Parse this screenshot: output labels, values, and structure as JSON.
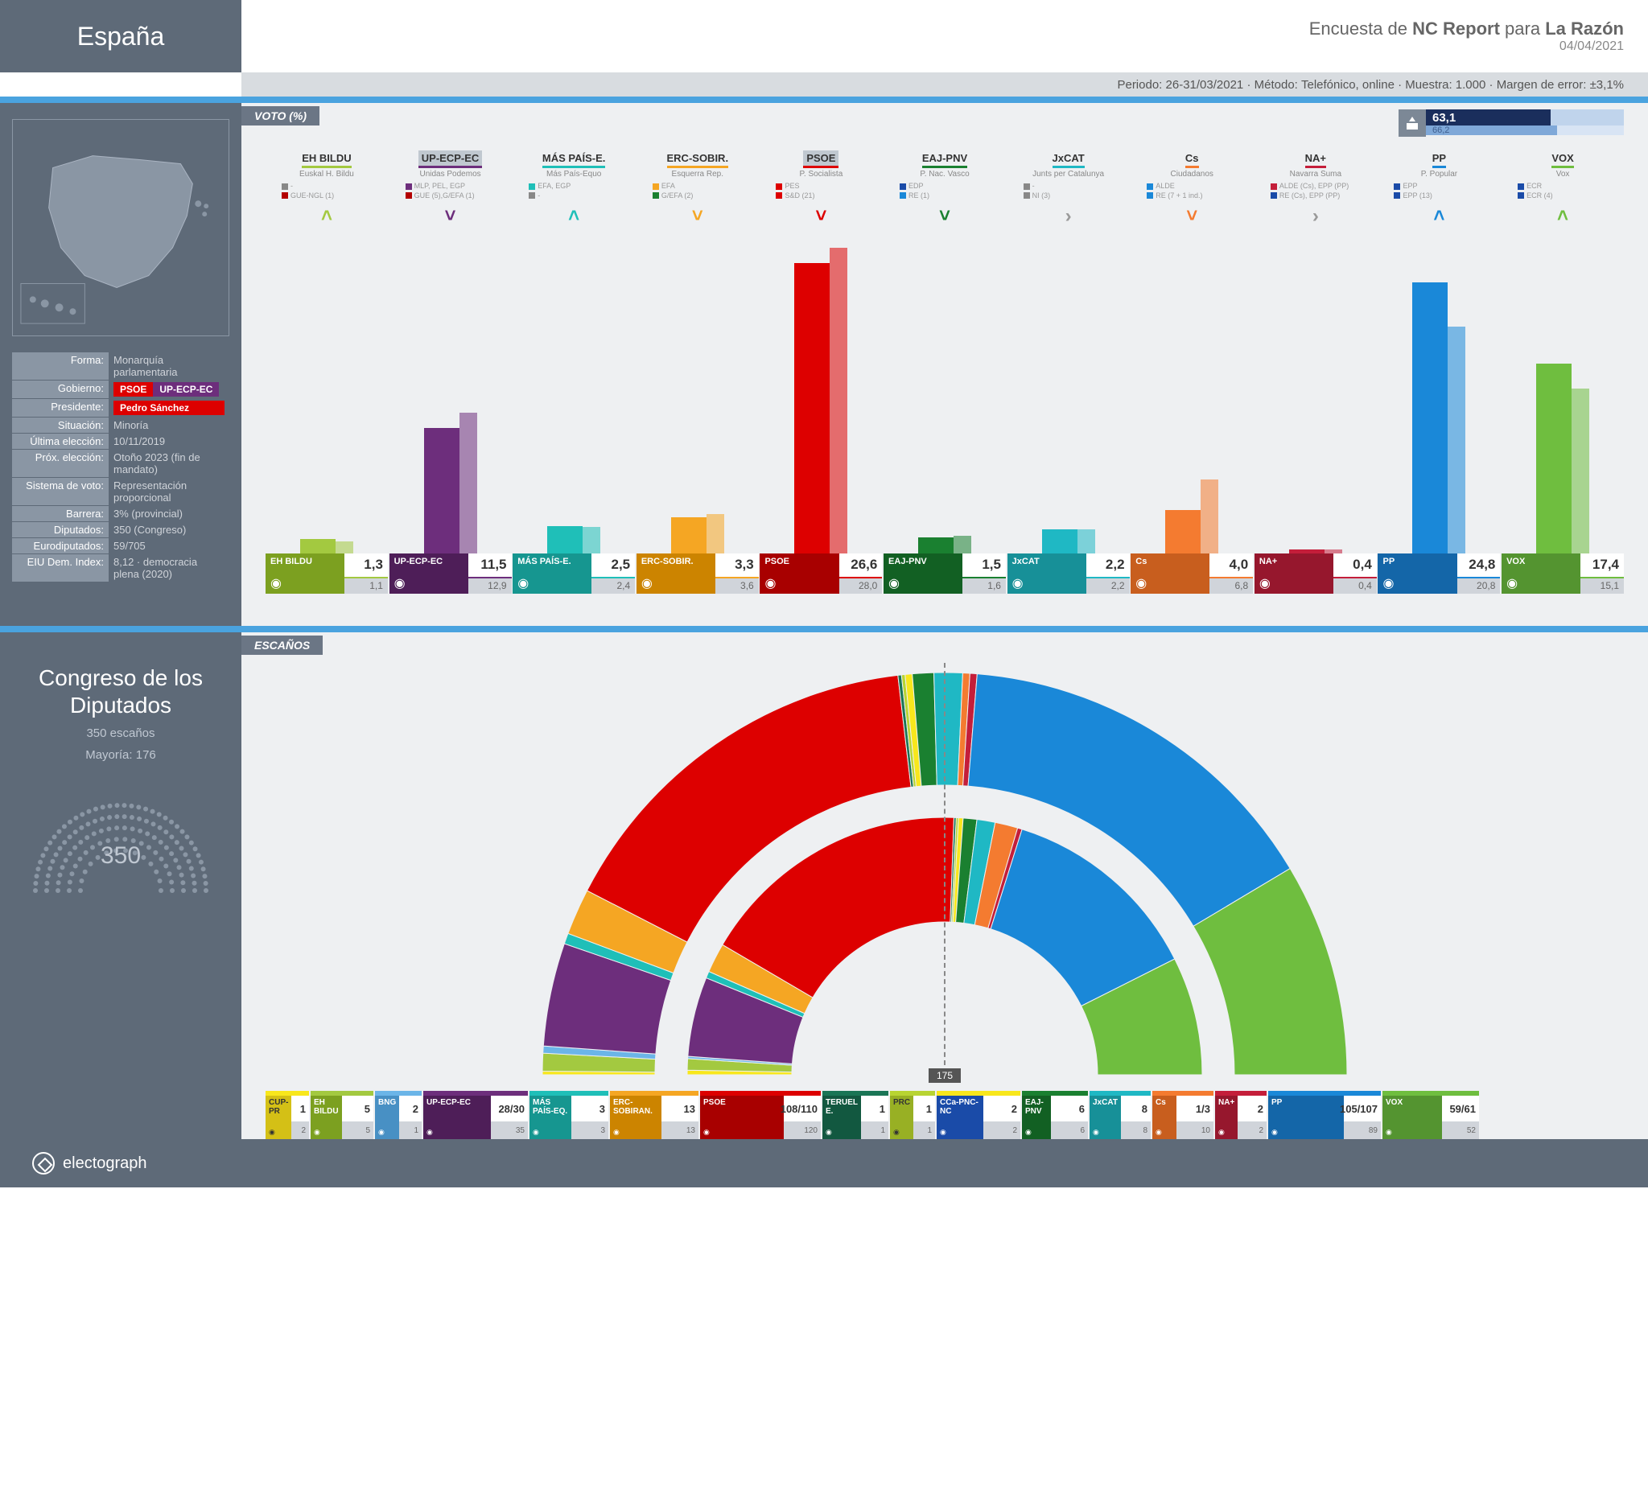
{
  "header": {
    "title": "España",
    "poll_prefix": "Encuesta de ",
    "pollster": "NC Report",
    "poll_middle": " para ",
    "outlet": "La Razón",
    "date": "04/04/2021"
  },
  "meta": {
    "period_label": "Periodo:",
    "period": "26-31/03/2021",
    "method_label": "Método:",
    "method": "Telefónico, online",
    "sample_label": "Muestra:",
    "sample": "1.000",
    "margin_label": "Margen de error:",
    "margin": "±3,1%"
  },
  "info": {
    "forma_label": "Forma:",
    "forma": "Monarquía parlamentaria",
    "gobierno_label": "Gobierno:",
    "gob1": "PSOE",
    "gob1_color": "#dd0000",
    "gob2": "UP-ECP-EC",
    "gob2_color": "#6d2e7c",
    "presidente_label": "Presidente:",
    "presidente": "Pedro Sánchez",
    "presidente_color": "#dd0000",
    "situacion_label": "Situación:",
    "situacion": "Minoría",
    "ultima_label": "Última elección:",
    "ultima": "10/11/2019",
    "prox_label": "Próx. elección:",
    "prox": "Otoño 2023 (fin de mandato)",
    "sistema_label": "Sistema de voto:",
    "sistema": "Representación proporcional",
    "barrera_label": "Barrera:",
    "barrera": "3% (provincial)",
    "diputados_label": "Diputados:",
    "diputados": "350 (Congreso)",
    "euro_label": "Eurodiputados:",
    "euro": "59/705",
    "eiu_label": "EIU Dem. Index:",
    "eiu": "8,12 · democracia plena (2020)"
  },
  "voto": {
    "section_label": "VOTO (%)",
    "turnout_current": "63,1",
    "turnout_prev": "66,2",
    "turnout_current_pct": 63.1,
    "turnout_prev_pct": 66.2,
    "max_value": 28.0,
    "parties": [
      {
        "name": "EH BILDU",
        "sub": "Euskal H. Bildu",
        "color": "#a3c940",
        "dark": "#7ca020",
        "value": 1.3,
        "prev": 1.1,
        "val_s": "1,3",
        "prev_s": "1,1",
        "arrow": "˄",
        "arrow_color": "#a3c940",
        "affil": [
          "■- ",
          "■GUE-NGL (1)"
        ],
        "affil_colors": [
          "#888",
          "#b30000"
        ],
        "hl": false
      },
      {
        "name": "UP-ECP-EC",
        "sub": "Unidas Podemos",
        "color": "#6d2e7c",
        "dark": "#4e1e58",
        "value": 11.5,
        "prev": 12.9,
        "val_s": "11,5",
        "prev_s": "12,9",
        "arrow": "˅",
        "arrow_color": "#6d2e7c",
        "affil": [
          "■MLP, PEL, EGP",
          "■GUE (5),G/EFA (1)"
        ],
        "affil_colors": [
          "#6d2e7c",
          "#b30000"
        ],
        "hl": true
      },
      {
        "name": "MÁS PAÍS-E.",
        "sub": "Más País-Equo",
        "color": "#1fbfb8",
        "dark": "#169690",
        "value": 2.5,
        "prev": 2.4,
        "val_s": "2,5",
        "prev_s": "2,4",
        "arrow": "˄",
        "arrow_color": "#1fbfb8",
        "affil": [
          "■EFA, EGP",
          "■-"
        ],
        "affil_colors": [
          "#1fbfb8",
          "#888"
        ],
        "hl": false
      },
      {
        "name": "ERC-SOBIR.",
        "sub": "Esquerra Rep.",
        "color": "#f5a623",
        "dark": "#cc8400",
        "value": 3.3,
        "prev": 3.6,
        "val_s": "3,3",
        "prev_s": "3,6",
        "arrow": "˅",
        "arrow_color": "#f5a623",
        "affil": [
          "■EFA",
          "■G/EFA (2)"
        ],
        "affil_colors": [
          "#f5a623",
          "#1a8030"
        ],
        "hl": false
      },
      {
        "name": "PSOE",
        "sub": "P. Socialista",
        "color": "#dd0000",
        "dark": "#a80000",
        "value": 26.6,
        "prev": 28.0,
        "val_s": "26,6",
        "prev_s": "28,0",
        "arrow": "˅",
        "arrow_color": "#dd0000",
        "affil": [
          "■PES",
          "■S&D (21)"
        ],
        "affil_colors": [
          "#dd0000",
          "#dd0000"
        ],
        "hl": true
      },
      {
        "name": "EAJ-PNV",
        "sub": "P. Nac. Vasco",
        "color": "#1a8030",
        "dark": "#126023",
        "value": 1.5,
        "prev": 1.6,
        "val_s": "1,5",
        "prev_s": "1,6",
        "arrow": "˅",
        "arrow_color": "#1a8030",
        "affil": [
          "■EDP",
          "■RE (1)"
        ],
        "affil_colors": [
          "#1a4ba8",
          "#1a88d8"
        ],
        "hl": false
      },
      {
        "name": "JxCAT",
        "sub": "Junts per Catalunya",
        "color": "#1fb8c4",
        "dark": "#179098",
        "value": 2.2,
        "prev": 2.2,
        "val_s": "2,2",
        "prev_s": "2,2",
        "arrow": "›",
        "arrow_color": "#999",
        "affil": [
          "■-",
          "■NI (3)"
        ],
        "affil_colors": [
          "#888",
          "#888"
        ],
        "hl": false
      },
      {
        "name": "Cs",
        "sub": "Ciudadanos",
        "color": "#f47b30",
        "dark": "#c85e1e",
        "value": 4.0,
        "prev": 6.8,
        "val_s": "4,0",
        "prev_s": "6,8",
        "arrow": "˅",
        "arrow_color": "#f47b30",
        "affil": [
          "■ALDE",
          "■RE (7 + 1 ind.)"
        ],
        "affil_colors": [
          "#1a88d8",
          "#1a88d8"
        ],
        "hl": false
      },
      {
        "name": "NA+",
        "sub": "Navarra Suma",
        "color": "#c41e3a",
        "dark": "#96172d",
        "value": 0.4,
        "prev": 0.4,
        "val_s": "0,4",
        "prev_s": "0,4",
        "arrow": "›",
        "arrow_color": "#999",
        "affil": [
          "■ALDE (Cs), EPP (PP)",
          "■RE (Cs), EPP (PP)"
        ],
        "affil_colors": [
          "#c41e3a",
          "#1a4ba8"
        ],
        "hl": false
      },
      {
        "name": "PP",
        "sub": "P. Popular",
        "color": "#1a88d8",
        "dark": "#1466a8",
        "value": 24.8,
        "prev": 20.8,
        "val_s": "24,8",
        "prev_s": "20,8",
        "arrow": "˄",
        "arrow_color": "#1a88d8",
        "affil": [
          "■EPP",
          "■EPP (13)"
        ],
        "affil_colors": [
          "#1a4ba8",
          "#1a4ba8"
        ],
        "hl": false
      },
      {
        "name": "VOX",
        "sub": "Vox",
        "color": "#6fbe3f",
        "dark": "#549430",
        "value": 17.4,
        "prev": 15.1,
        "val_s": "17,4",
        "prev_s": "15,1",
        "arrow": "˄",
        "arrow_color": "#6fbe3f",
        "affil": [
          "■ECR",
          "■ECR (4)"
        ],
        "affil_colors": [
          "#1a4ba8",
          "#1a4ba8"
        ],
        "hl": false
      }
    ]
  },
  "seats": {
    "section_label": "ESCAÑOS",
    "chamber_title": "Congreso de los Diputados",
    "total_label": "350 escaños",
    "majority_label": "Mayoría: 176",
    "total_seats": "350",
    "center_marker": "175",
    "outer": [
      {
        "name": "CUP-PR",
        "color": "#f8e71c",
        "seats": 1
      },
      {
        "name": "EH BILDU",
        "color": "#a3c940",
        "seats": 5
      },
      {
        "name": "BNG",
        "color": "#6bb5e8",
        "seats": 2
      },
      {
        "name": "UP-ECP-EC",
        "color": "#6d2e7c",
        "seats": 29
      },
      {
        "name": "MÁS PAÍS-EQ.",
        "color": "#1fbfb8",
        "seats": 3
      },
      {
        "name": "ERC-SOBIRAN.",
        "color": "#f5a623",
        "seats": 13
      },
      {
        "name": "PSOE",
        "color": "#dd0000",
        "seats": 109
      },
      {
        "name": "TERUEL E.",
        "color": "#1a7555",
        "seats": 1
      },
      {
        "name": "PRC",
        "color": "#b8d432",
        "seats": 1
      },
      {
        "name": "CCa-PNC-NC",
        "color": "#f8e71c",
        "seats": 2
      },
      {
        "name": "EAJ-PNV",
        "color": "#1a8030",
        "seats": 6
      },
      {
        "name": "JxCAT",
        "color": "#1fb8c4",
        "seats": 8
      },
      {
        "name": "Cs",
        "color": "#f47b30",
        "seats": 2
      },
      {
        "name": "NA+",
        "color": "#c41e3a",
        "seats": 2
      },
      {
        "name": "PP",
        "color": "#1a88d8",
        "seats": 106
      },
      {
        "name": "VOX",
        "color": "#6fbe3f",
        "seats": 60
      }
    ],
    "inner": [
      {
        "name": "CUP-PR",
        "color": "#f8e71c",
        "seats": 2
      },
      {
        "name": "EH BILDU",
        "color": "#a3c940",
        "seats": 5
      },
      {
        "name": "BNG",
        "color": "#6bb5e8",
        "seats": 1
      },
      {
        "name": "UP-ECP-EC",
        "color": "#6d2e7c",
        "seats": 35
      },
      {
        "name": "MÁS PAÍS-EQ.",
        "color": "#1fbfb8",
        "seats": 3
      },
      {
        "name": "ERC-SOBIRAN.",
        "color": "#f5a623",
        "seats": 13
      },
      {
        "name": "PSOE",
        "color": "#dd0000",
        "seats": 120
      },
      {
        "name": "TERUEL E.",
        "color": "#1a7555",
        "seats": 1
      },
      {
        "name": "PRC",
        "color": "#b8d432",
        "seats": 1
      },
      {
        "name": "CCa-PNC-NC",
        "color": "#f8e71c",
        "seats": 2
      },
      {
        "name": "EAJ-PNV",
        "color": "#1a8030",
        "seats": 6
      },
      {
        "name": "JxCAT",
        "color": "#1fb8c4",
        "seats": 8
      },
      {
        "name": "Cs",
        "color": "#f47b30",
        "seats": 10
      },
      {
        "name": "NA+",
        "color": "#c41e3a",
        "seats": 2
      },
      {
        "name": "PP",
        "color": "#1a88d8",
        "seats": 89
      },
      {
        "name": "VOX",
        "color": "#6fbe3f",
        "seats": 52
      }
    ],
    "labels": [
      {
        "name": "CUP-PR",
        "top_color": "#f8e71c",
        "color": "#d4c016",
        "main": "1",
        "prev": "2",
        "w": 54,
        "txt": "#333"
      },
      {
        "name": "EH BILDU",
        "top_color": "#a3c940",
        "color": "#7ca020",
        "main": "5",
        "prev": "5",
        "w": 78,
        "txt": "#fff"
      },
      {
        "name": "BNG",
        "top_color": "#6bb5e8",
        "color": "#4890c4",
        "main": "2",
        "prev": "1",
        "w": 58,
        "txt": "#fff"
      },
      {
        "name": "UP-ECP-EC",
        "top_color": "#6d2e7c",
        "color": "#4e1e58",
        "main": "28/30",
        "prev": "35",
        "w": 130,
        "txt": "#fff"
      },
      {
        "name": "MÁS PAÍS-EQ.",
        "top_color": "#1fbfb8",
        "color": "#169690",
        "main": "3",
        "prev": "3",
        "w": 98,
        "txt": "#fff"
      },
      {
        "name": "ERC-SOBIRAN.",
        "top_color": "#f5a623",
        "color": "#cc8400",
        "main": "13",
        "prev": "13",
        "w": 110,
        "txt": "#fff"
      },
      {
        "name": "PSOE",
        "top_color": "#dd0000",
        "color": "#a80000",
        "main": "108/110",
        "prev": "120",
        "w": 150,
        "txt": "#fff"
      },
      {
        "name": "TERUEL E.",
        "top_color": "#1a7555",
        "color": "#125840",
        "main": "1",
        "prev": "1",
        "w": 82,
        "txt": "#fff"
      },
      {
        "name": "PRC",
        "top_color": "#b8d432",
        "color": "#98b024",
        "main": "1",
        "prev": "1",
        "w": 56,
        "txt": "#333"
      },
      {
        "name": "CCa-PNC-NC",
        "top_color": "#f8e71c",
        "color": "#1a4ba8",
        "main": "2",
        "prev": "2",
        "w": 104,
        "txt": "#fff"
      },
      {
        "name": "EAJ-PNV",
        "top_color": "#1a8030",
        "color": "#126023",
        "main": "6",
        "prev": "6",
        "w": 82,
        "txt": "#fff"
      },
      {
        "name": "JxCAT",
        "top_color": "#1fb8c4",
        "color": "#179098",
        "main": "8",
        "prev": "8",
        "w": 76,
        "txt": "#fff"
      },
      {
        "name": "Cs",
        "top_color": "#f47b30",
        "color": "#c85e1e",
        "main": "1/3",
        "prev": "10",
        "w": 76,
        "txt": "#fff"
      },
      {
        "name": "NA+",
        "top_color": "#c41e3a",
        "color": "#96172d",
        "main": "2",
        "prev": "2",
        "w": 64,
        "txt": "#fff"
      },
      {
        "name": "PP",
        "top_color": "#1a88d8",
        "color": "#1466a8",
        "main": "105/107",
        "prev": "89",
        "w": 140,
        "txt": "#fff"
      },
      {
        "name": "VOX",
        "top_color": "#6fbe3f",
        "color": "#549430",
        "main": "59/61",
        "prev": "52",
        "w": 120,
        "txt": "#fff"
      }
    ]
  },
  "footer": {
    "brand": "electograph"
  },
  "colors": {
    "sidebar": "#5e6a78",
    "content_bg": "#eef0f2",
    "divider": "#4aa3df"
  }
}
